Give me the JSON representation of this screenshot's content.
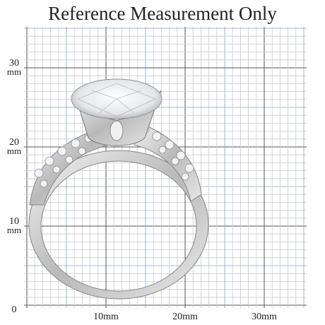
{
  "header": {
    "title": "Reference Measurement Only"
  },
  "y_labels": [
    {
      "number": "30",
      "unit": "mm"
    },
    {
      "number": "20",
      "unit": "mm"
    },
    {
      "number": "10",
      "unit": "mm"
    },
    {
      "number": "0"
    }
  ],
  "x_labels": [
    "10mm",
    "20mm",
    "30mm"
  ]
}
